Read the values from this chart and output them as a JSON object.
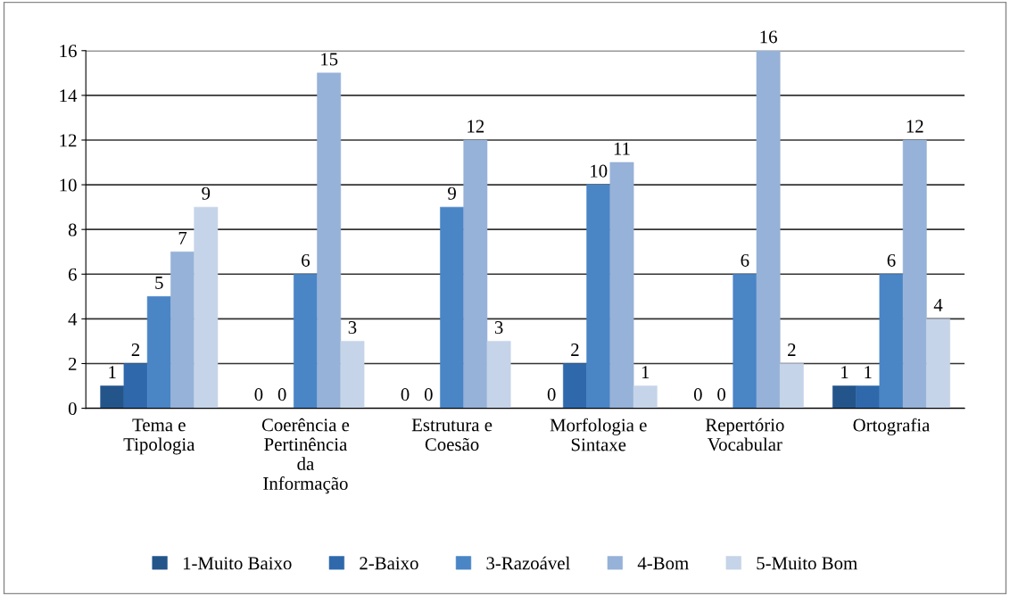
{
  "chart_data": {
    "type": "bar",
    "categories": [
      "Tema e\nTipologia",
      "Coerência e\nPertinência\nda\nInformação",
      "Estrutura e\nCoesão",
      "Morfologia e\nSintaxe",
      "Repertório\nVocabular",
      "Ortografia"
    ],
    "series": [
      {
        "name": "1-Muito Baixo",
        "color": "#24558a",
        "values": [
          1,
          0,
          0,
          0,
          0,
          1
        ]
      },
      {
        "name": "2-Baixo",
        "color": "#2f69ac",
        "values": [
          2,
          0,
          0,
          2,
          0,
          1
        ]
      },
      {
        "name": "3-Razoável",
        "color": "#4a85c6",
        "values": [
          5,
          6,
          9,
          10,
          6,
          6
        ]
      },
      {
        "name": "4-Bom",
        "color": "#97b2d8",
        "values": [
          7,
          15,
          12,
          11,
          16,
          12
        ]
      },
      {
        "name": "5-Muito Bom",
        "color": "#c6d4e9",
        "values": [
          9,
          3,
          3,
          1,
          2,
          4
        ]
      }
    ],
    "ylim": [
      0,
      16
    ],
    "yticks": [
      0,
      2,
      4,
      6,
      8,
      10,
      12,
      14,
      16
    ],
    "grid": "y",
    "legend": "bottom",
    "data_labels": true
  }
}
